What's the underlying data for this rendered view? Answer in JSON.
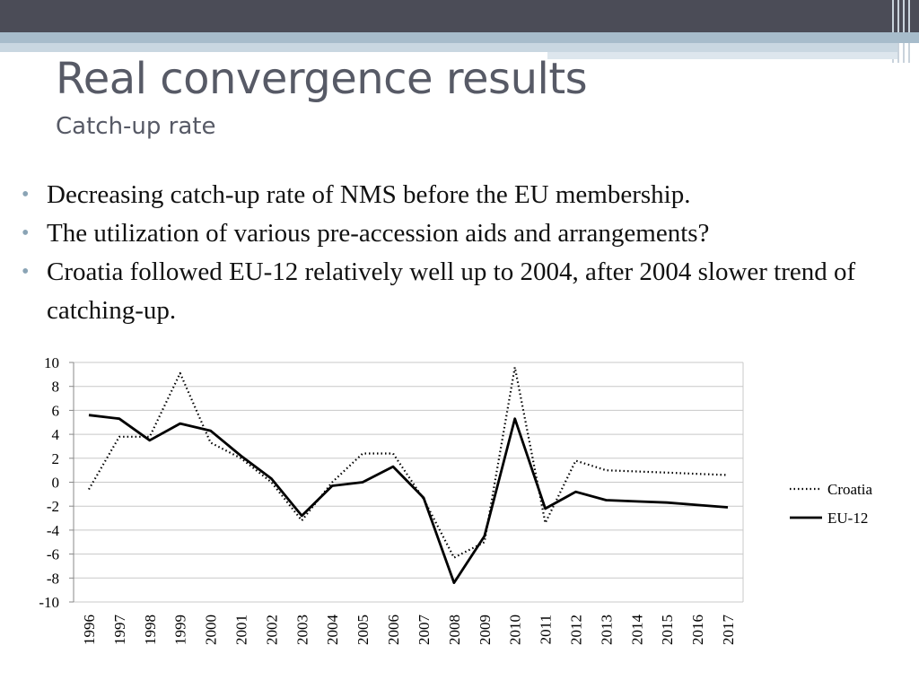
{
  "slide": {
    "title": "Real convergence results",
    "subtitle": "Catch-up rate",
    "bullets": [
      "Decreasing catch-up rate of NMS before the EU membership.",
      "The utilization of various pre-accession aids and arrangements?",
      "Croatia followed EU-12 relatively well up to 2004, after 2004 slower trend of catching-up."
    ]
  },
  "colors": {
    "topbar": "#4b4c57",
    "band": "#a7bccb",
    "title": "#575a66",
    "bullet": "#8aa4b5"
  },
  "chart_data": {
    "type": "line",
    "title": "",
    "xlabel": "",
    "ylabel": "",
    "categories": [
      "1996",
      "1997",
      "1998",
      "1999",
      "2000",
      "2001",
      "2002",
      "2003",
      "2004",
      "2005",
      "2006",
      "2007",
      "2008",
      "2009",
      "2010",
      "2011",
      "2012",
      "2013",
      "2014",
      "2015",
      "2016",
      "2017"
    ],
    "ylim": [
      -10,
      10
    ],
    "yticks": [
      "10",
      "8",
      "6",
      "4",
      "2",
      "0",
      "-2",
      "-4",
      "-6",
      "-8",
      "-10"
    ],
    "grid": true,
    "legend": "right",
    "series": [
      {
        "name": "Croatia",
        "style": "dotted",
        "values": [
          -0.6,
          3.8,
          3.8,
          9.1,
          3.3,
          2.0,
          0.0,
          -3.2,
          0.0,
          2.4,
          2.4,
          -1.4,
          -6.3,
          -5.0,
          9.6,
          -3.4,
          1.8,
          1.0,
          0.9,
          0.8,
          0.7,
          0.6
        ]
      },
      {
        "name": "EU-12",
        "style": "solid",
        "values": [
          5.6,
          5.3,
          3.5,
          4.9,
          4.3,
          2.2,
          0.3,
          -2.8,
          -0.3,
          0.0,
          1.3,
          -1.3,
          -8.4,
          -4.5,
          5.3,
          -2.2,
          -0.8,
          -1.5,
          -1.6,
          -1.7,
          -1.9,
          -2.1
        ]
      }
    ]
  }
}
